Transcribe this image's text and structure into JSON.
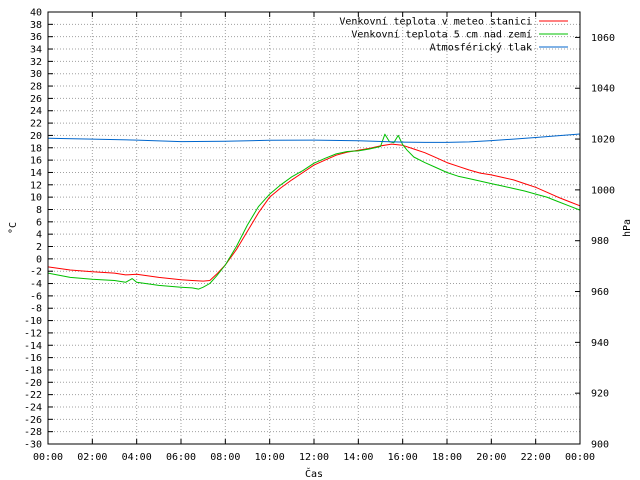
{
  "chart_data": {
    "type": "line",
    "title": "",
    "xlabel": "Čas",
    "ylabel_left": "°C",
    "ylabel_right": "hPa",
    "x_ticks": [
      "00:00",
      "02:00",
      "04:00",
      "06:00",
      "08:00",
      "10:00",
      "12:00",
      "14:00",
      "16:00",
      "18:00",
      "20:00",
      "22:00",
      "00:00"
    ],
    "x_range_hours": [
      0,
      24
    ],
    "ylim_left": [
      -30,
      40
    ],
    "ylim_right": [
      900,
      1070
    ],
    "y_ticks_left": [
      -30,
      -28,
      -26,
      -24,
      -22,
      -20,
      -18,
      -16,
      -14,
      -12,
      -10,
      -8,
      -6,
      -4,
      -2,
      0,
      2,
      4,
      6,
      8,
      10,
      12,
      14,
      16,
      18,
      20,
      22,
      24,
      26,
      28,
      30,
      32,
      34,
      36,
      38,
      40
    ],
    "y_ticks_right": [
      900,
      920,
      940,
      960,
      980,
      1000,
      1020,
      1040,
      1060
    ],
    "grid": true,
    "legend_position": "top-right",
    "series": [
      {
        "name": "Venkovní teplota v meteo stanici",
        "color": "#ff0000",
        "axis": "left",
        "x": [
          0,
          1,
          2,
          3,
          3.5,
          4,
          5,
          6,
          6.5,
          7,
          7.3,
          7.6,
          8,
          8.5,
          9,
          9.5,
          10,
          10.5,
          11,
          11.5,
          12,
          12.5,
          13,
          13.5,
          14,
          14.5,
          15,
          15.5,
          16,
          16.5,
          17,
          17.5,
          18,
          18.5,
          19,
          19.5,
          20,
          20.5,
          21,
          21.5,
          22,
          22.5,
          23,
          23.5,
          24
        ],
        "y": [
          -1.3,
          -1.8,
          -2.1,
          -2.3,
          -2.6,
          -2.5,
          -3.0,
          -3.4,
          -3.5,
          -3.6,
          -3.5,
          -2.5,
          -1.0,
          1.5,
          4.5,
          7.5,
          10,
          11.5,
          12.8,
          14,
          15.2,
          16,
          16.8,
          17.3,
          17.6,
          17.9,
          18.3,
          18.6,
          18.4,
          17.8,
          17.2,
          16.4,
          15.6,
          15.0,
          14.4,
          13.9,
          13.6,
          13.2,
          12.8,
          12.2,
          11.6,
          10.8,
          10.0,
          9.3,
          8.6
        ]
      },
      {
        "name": "Venkovní teplota 5 cm nad zemí",
        "color": "#00c000",
        "axis": "left",
        "x": [
          0,
          1,
          2,
          3,
          3.5,
          3.8,
          4,
          5,
          6,
          6.5,
          6.8,
          7,
          7.3,
          7.6,
          8,
          8.5,
          9,
          9.5,
          10,
          10.5,
          11,
          11.5,
          12,
          12.5,
          13,
          13.5,
          14,
          14.5,
          15,
          15.2,
          15.4,
          15.6,
          15.8,
          16,
          16.2,
          16.5,
          17,
          17.5,
          18,
          18.5,
          19,
          19.5,
          20,
          20.5,
          21,
          21.5,
          22,
          22.5,
          23,
          23.5,
          24
        ],
        "y": [
          -2.3,
          -3.0,
          -3.3,
          -3.5,
          -3.8,
          -3.2,
          -3.8,
          -4.3,
          -4.6,
          -4.7,
          -4.9,
          -4.6,
          -4.0,
          -2.8,
          -1.0,
          2.0,
          5.5,
          8.5,
          10.5,
          12.0,
          13.3,
          14.3,
          15.5,
          16.3,
          17.0,
          17.4,
          17.5,
          17.8,
          18.2,
          20.2,
          19.0,
          18.8,
          20.0,
          18.5,
          17.6,
          16.5,
          15.6,
          14.8,
          14.0,
          13.4,
          13.0,
          12.6,
          12.2,
          11.8,
          11.4,
          11.0,
          10.5,
          10.0,
          9.3,
          8.6,
          7.9
        ]
      },
      {
        "name": "Atmosférický tlak",
        "color": "#0066cc",
        "axis": "right",
        "x": [
          0,
          2,
          4,
          6,
          8,
          10,
          12,
          14,
          16,
          17,
          18,
          19,
          20,
          21,
          22,
          23,
          24
        ],
        "y": [
          1020.3,
          1020.0,
          1019.6,
          1019.0,
          1019.1,
          1019.5,
          1019.6,
          1019.3,
          1018.8,
          1018.7,
          1018.7,
          1018.9,
          1019.4,
          1020.0,
          1020.6,
          1021.3,
          1022.0
        ]
      }
    ]
  }
}
